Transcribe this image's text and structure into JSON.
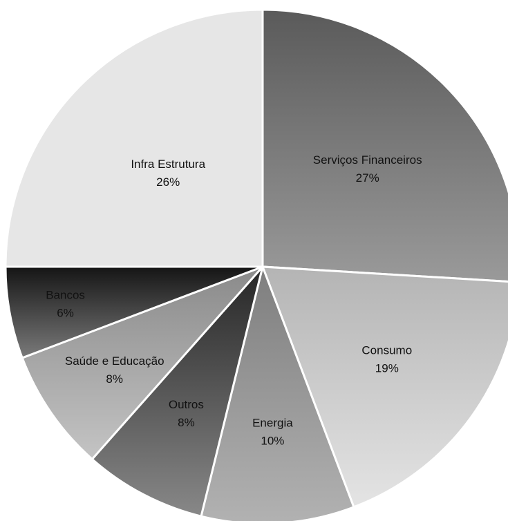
{
  "chart_data": {
    "type": "pie",
    "title": "",
    "slices": [
      {
        "label": "Serviços Financeiros",
        "value": 27,
        "display": "27%",
        "color_from": "#5a5a5a",
        "color_to": "#9a9a9a"
      },
      {
        "label": "Consumo",
        "value": 19,
        "display": "19%",
        "color_from": "#b4b4b4",
        "color_to": "#e4e4e4"
      },
      {
        "label": "Energia",
        "value": 10,
        "display": "10%",
        "color_from": "#7e7e7e",
        "color_to": "#b2b2b2"
      },
      {
        "label": "Outros",
        "value": 8,
        "display": "8%",
        "color_from": "#262626",
        "color_to": "#888888"
      },
      {
        "label": "Saúde e Educação",
        "value": 8,
        "display": "8%",
        "color_from": "#8a8a8a",
        "color_to": "#c4c4c4"
      },
      {
        "label": "Bancos",
        "value": 6,
        "display": "6%",
        "color_from": "#151515",
        "color_to": "#7a7a7a"
      },
      {
        "label": "Infra Estrutura",
        "value": 26,
        "display": "26%",
        "color_from": "#e6e6e6",
        "color_to": "#e6e6e6"
      }
    ],
    "start_direction": "top",
    "direction": "clockwise",
    "legend": "none"
  }
}
